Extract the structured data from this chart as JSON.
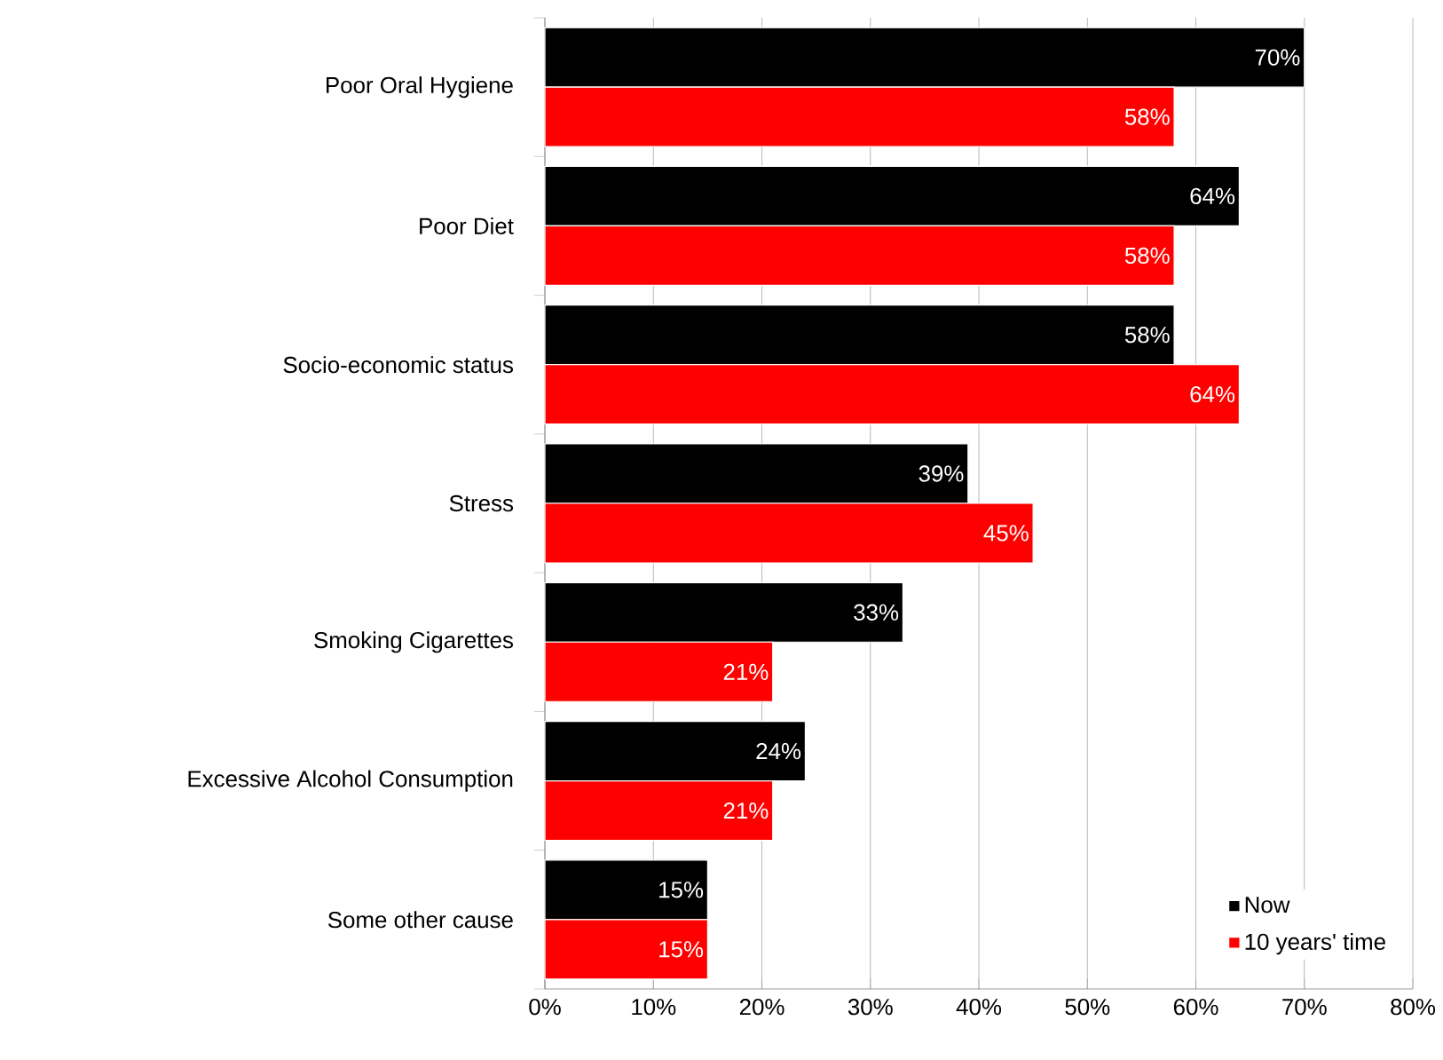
{
  "chart_data": {
    "type": "bar",
    "orientation": "horizontal",
    "categories": [
      "Poor Oral Hygiene",
      "Poor Diet",
      "Socio-economic status",
      "Stress",
      "Smoking Cigarettes",
      "Excessive Alcohol Consumption",
      "Some other cause"
    ],
    "series": [
      {
        "name": "Now",
        "color": "#000000",
        "values": [
          70,
          64,
          58,
          39,
          33,
          24,
          15
        ],
        "value_labels": [
          "70%",
          "64%",
          "58%",
          "39%",
          "33%",
          "24%",
          "15%"
        ]
      },
      {
        "name": "10 years' time",
        "color": "#ff0000",
        "values": [
          58,
          58,
          64,
          45,
          21,
          21,
          15
        ],
        "value_labels": [
          "58%",
          "58%",
          "64%",
          "45%",
          "21%",
          "21%",
          "15%"
        ]
      }
    ],
    "xlim": [
      0,
      80
    ],
    "xticks": [
      {
        "value": 0,
        "label": "0%"
      },
      {
        "value": 10,
        "label": "10%"
      },
      {
        "value": 20,
        "label": "20%"
      },
      {
        "value": 30,
        "label": "30%"
      },
      {
        "value": 40,
        "label": "40%"
      },
      {
        "value": 50,
        "label": "50%"
      },
      {
        "value": 60,
        "label": "60%"
      },
      {
        "value": 70,
        "label": "70%"
      },
      {
        "value": 80,
        "label": "80%"
      }
    ],
    "grid": "x",
    "legend": "bottom right"
  }
}
